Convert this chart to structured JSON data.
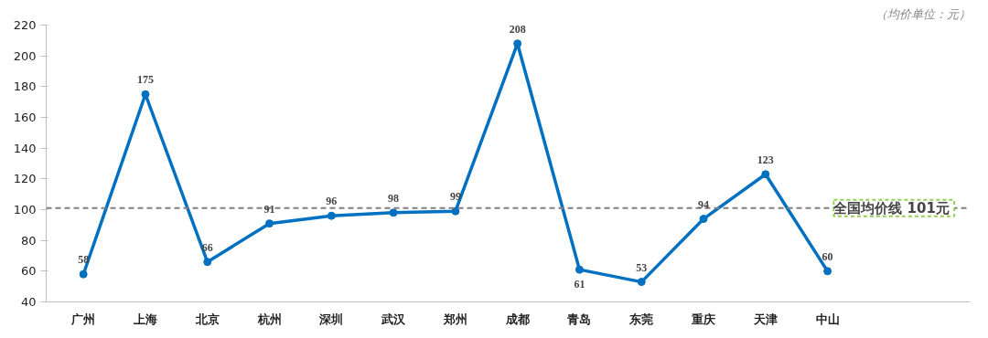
{
  "chart_data": {
    "type": "line",
    "categories": [
      "广州",
      "上海",
      "北京",
      "杭州",
      "深圳",
      "武汉",
      "郑州",
      "成都",
      "青岛",
      "东莞",
      "重庆",
      "天津",
      "中山"
    ],
    "series": [
      {
        "color": "#0070c0",
        "values": [
          58,
          175,
          66,
          91,
          96,
          98,
          99,
          208,
          61,
          53,
          94,
          123,
          60
        ]
      }
    ],
    "ylim": [
      40,
      220
    ],
    "yticks": [
      40,
      60,
      80,
      100,
      120,
      140,
      160,
      180,
      200,
      220
    ],
    "grid": false,
    "marker": "circle",
    "line_style": "solid",
    "data_labels": true,
    "ref_lines": [
      {
        "axis": "y",
        "value": 101,
        "label": "全国均价线  101元",
        "color": "#808080",
        "line_style": "dashed"
      }
    ],
    "annotations": [
      "（均价单位：元）"
    ]
  }
}
